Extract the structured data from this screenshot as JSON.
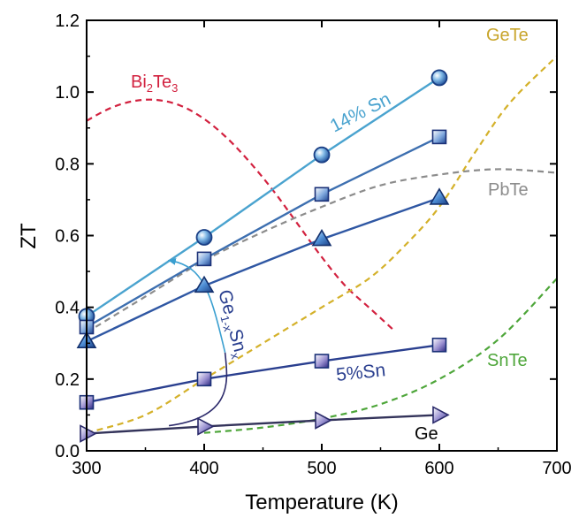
{
  "chart_data": {
    "type": "line",
    "xlabel": "Temperature (K)",
    "ylabel": "ZT",
    "xlim": [
      300,
      700
    ],
    "ylim": [
      0.0,
      1.2
    ],
    "x_ticks": [
      "300",
      "400",
      "500",
      "600",
      "700"
    ],
    "y_ticks": [
      "0.0",
      "0.2",
      "0.4",
      "0.6",
      "0.8",
      "1.0",
      "1.2"
    ],
    "grid": false,
    "reference_curves": [
      {
        "name": "Bi2Te3",
        "style": "dashed",
        "color": "#d2213f",
        "x": [
          300,
          320,
          340,
          360,
          380,
          400,
          420,
          440,
          460,
          480,
          500,
          520,
          540,
          560
        ],
        "y": [
          0.92,
          0.955,
          0.975,
          0.978,
          0.962,
          0.925,
          0.87,
          0.8,
          0.72,
          0.63,
          0.54,
          0.46,
          0.4,
          0.34
        ]
      },
      {
        "name": "GeTe",
        "style": "dashed",
        "color": "#d4b12a",
        "x": [
          300,
          350,
          400,
          450,
          500,
          540,
          570,
          600,
          630,
          660,
          700
        ],
        "y": [
          0.05,
          0.1,
          0.2,
          0.3,
          0.4,
          0.48,
          0.57,
          0.68,
          0.83,
          0.97,
          1.1
        ]
      },
      {
        "name": "PbTe",
        "style": "dashed",
        "color": "#8c8c8c",
        "x": [
          300,
          350,
          400,
          450,
          500,
          550,
          600,
          650,
          700
        ],
        "y": [
          0.33,
          0.43,
          0.53,
          0.61,
          0.68,
          0.74,
          0.77,
          0.785,
          0.775
        ]
      },
      {
        "name": "SnTe",
        "style": "dashed",
        "color": "#4ea63a",
        "x": [
          400,
          450,
          500,
          550,
          600,
          650,
          700
        ],
        "y": [
          0.05,
          0.065,
          0.09,
          0.13,
          0.2,
          0.31,
          0.48
        ]
      }
    ],
    "series": [
      {
        "name": "14% Sn",
        "color": "#4aa3cf",
        "marker": "circle",
        "x": [
          300,
          400,
          500,
          600
        ],
        "y": [
          0.375,
          0.595,
          0.825,
          1.04
        ]
      },
      {
        "name": "",
        "color": "#3d6fb0",
        "marker": "square",
        "x": [
          300,
          400,
          500,
          600
        ],
        "y": [
          0.345,
          0.535,
          0.715,
          0.875
        ]
      },
      {
        "name": "",
        "color": "#2f57a3",
        "marker": "triangle-up",
        "x": [
          300,
          400,
          500,
          600
        ],
        "y": [
          0.305,
          0.46,
          0.59,
          0.705
        ]
      },
      {
        "name": "5%Sn",
        "color": "#2a3f8f",
        "marker": "square",
        "x": [
          300,
          400,
          500,
          600
        ],
        "y": [
          0.135,
          0.2,
          0.25,
          0.295
        ]
      },
      {
        "name": "Ge",
        "color": "#33335a",
        "marker": "triangle-right",
        "x": [
          300,
          400,
          500,
          600
        ],
        "y": [
          0.048,
          0.068,
          0.085,
          0.1
        ]
      }
    ],
    "annotations": [
      {
        "text": "Bi₂Te₃",
        "color": "#d2213f"
      },
      {
        "text": "GeTe",
        "color": "#c8a52b"
      },
      {
        "text": "PbTe",
        "color": "#8c8c8c"
      },
      {
        "text": "SnTe",
        "color": "#4ea63a"
      },
      {
        "text": "14% Sn",
        "color": "#4aa3cf"
      },
      {
        "text": "5%Sn",
        "color": "#2a3f8f"
      },
      {
        "text": "Ge",
        "color": "#000000"
      },
      {
        "text": "Ge₁₋ₓSnₓ",
        "color": "#2a3f8f"
      }
    ]
  },
  "labels": {
    "bi2te3_main": "Bi",
    "bi2te3_sub1": "2",
    "bi2te3_te": "Te",
    "bi2te3_sub2": "3",
    "gete": "GeTe",
    "pbte": "PbTe",
    "snte": "SnTe",
    "sn14": "14% Sn",
    "sn5": "5%Sn",
    "ge": "Ge",
    "gesn_ge": "Ge",
    "gesn_sub1": "1-x",
    "gesn_sn": "Sn",
    "gesn_sub2": "x"
  }
}
